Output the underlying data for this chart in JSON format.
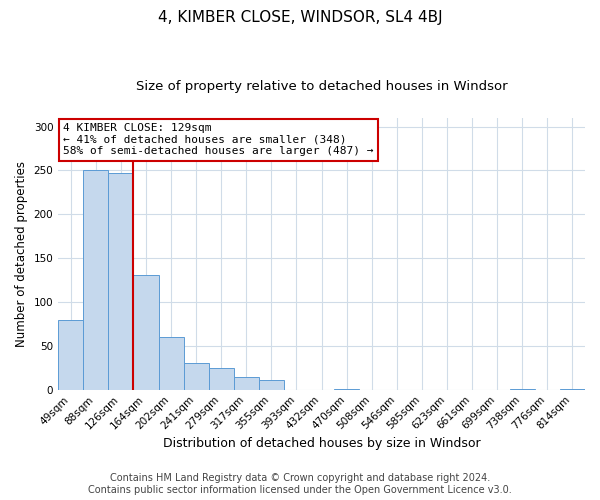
{
  "title": "4, KIMBER CLOSE, WINDSOR, SL4 4BJ",
  "subtitle": "Size of property relative to detached houses in Windsor",
  "xlabel": "Distribution of detached houses by size in Windsor",
  "ylabel": "Number of detached properties",
  "categories": [
    "49sqm",
    "88sqm",
    "126sqm",
    "164sqm",
    "202sqm",
    "241sqm",
    "279sqm",
    "317sqm",
    "355sqm",
    "393sqm",
    "432sqm",
    "470sqm",
    "508sqm",
    "546sqm",
    "585sqm",
    "623sqm",
    "661sqm",
    "699sqm",
    "738sqm",
    "776sqm",
    "814sqm"
  ],
  "values": [
    79,
    251,
    247,
    131,
    60,
    30,
    25,
    14,
    11,
    0,
    0,
    1,
    0,
    0,
    0,
    0,
    0,
    0,
    1,
    0,
    1
  ],
  "bar_color": "#c5d8ed",
  "bar_edge_color": "#5b9bd5",
  "marker_index": 2,
  "marker_color": "#cc0000",
  "annotation_line1": "4 KIMBER CLOSE: 129sqm",
  "annotation_line2": "← 41% of detached houses are smaller (348)",
  "annotation_line3": "58% of semi-detached houses are larger (487) →",
  "annotation_box_edge": "#cc0000",
  "ylim": [
    0,
    310
  ],
  "yticks": [
    0,
    50,
    100,
    150,
    200,
    250,
    300
  ],
  "footer1": "Contains HM Land Registry data © Crown copyright and database right 2024.",
  "footer2": "Contains public sector information licensed under the Open Government Licence v3.0.",
  "background_color": "#ffffff",
  "grid_color": "#d0dce8",
  "title_fontsize": 11,
  "subtitle_fontsize": 9.5,
  "xlabel_fontsize": 9,
  "ylabel_fontsize": 8.5,
  "tick_fontsize": 7.5,
  "annotation_fontsize": 8,
  "footer_fontsize": 7
}
